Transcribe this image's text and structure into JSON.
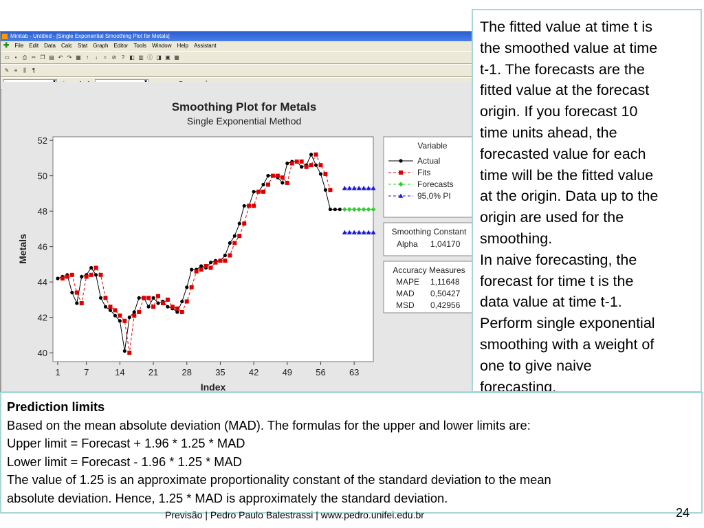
{
  "window": {
    "title": "Minitab - Untitled - [Single Exponential Smoothing Plot for Metals]",
    "menus": [
      "File",
      "Edit",
      "Data",
      "Calc",
      "Stat",
      "Graph",
      "Editor",
      "Tools",
      "Window",
      "Help",
      "Assistant"
    ]
  },
  "chart_data": {
    "type": "line",
    "title": "Smoothing Plot for Metals",
    "subtitle": "Single Exponential Method",
    "xlabel": "Index",
    "ylabel": "Metals",
    "xticks": [
      1,
      7,
      14,
      21,
      28,
      35,
      42,
      49,
      56,
      63
    ],
    "yticks": [
      40,
      42,
      44,
      46,
      48,
      50,
      52
    ],
    "xlim": [
      0,
      67
    ],
    "ylim": [
      39.5,
      52.2
    ],
    "series": [
      {
        "name": "Actual",
        "color": "#000000",
        "marker": "circle",
        "line": "solid",
        "x": [
          1,
          2,
          3,
          4,
          5,
          6,
          7,
          8,
          9,
          10,
          11,
          12,
          13,
          14,
          15,
          16,
          17,
          18,
          19,
          20,
          21,
          22,
          23,
          24,
          25,
          26,
          27,
          28,
          29,
          30,
          31,
          32,
          33,
          34,
          35,
          36,
          37,
          38,
          39,
          40,
          41,
          42,
          43,
          44,
          45,
          46,
          47,
          48,
          49,
          50,
          51,
          52,
          53,
          54,
          55,
          56,
          57,
          58,
          59,
          60
        ],
        "y": [
          44.2,
          44.3,
          44.4,
          43.4,
          42.8,
          44.3,
          44.4,
          44.8,
          44.4,
          43.1,
          42.6,
          42.4,
          42.1,
          41.8,
          40.1,
          42.0,
          42.3,
          43.1,
          43.1,
          42.6,
          43.1,
          42.8,
          42.9,
          42.6,
          42.5,
          42.3,
          42.9,
          43.7,
          44.7,
          44.7,
          44.9,
          44.8,
          45.1,
          45.2,
          45.2,
          45.5,
          46.2,
          46.6,
          47.3,
          48.3,
          48.3,
          49.1,
          49.1,
          49.5,
          50.0,
          50.0,
          49.9,
          49.6,
          50.7,
          50.8,
          50.8,
          50.5,
          50.6,
          51.2,
          50.6,
          50.1,
          49.2,
          48.1,
          48.1,
          48.1
        ]
      },
      {
        "name": "Fits",
        "color": "#dd0000",
        "marker": "square",
        "line": "dashed",
        "x": [
          2,
          3,
          4,
          5,
          6,
          7,
          8,
          9,
          10,
          11,
          12,
          13,
          14,
          15,
          16,
          17,
          18,
          19,
          20,
          21,
          22,
          23,
          24,
          25,
          26,
          27,
          28,
          29,
          30,
          31,
          32,
          33,
          34,
          35,
          36,
          37,
          38,
          39,
          40,
          41,
          42,
          43,
          44,
          45,
          46,
          47,
          48,
          49,
          50,
          51,
          52,
          53,
          54,
          55,
          56,
          57,
          58
        ],
        "y": [
          44.2,
          44.3,
          44.4,
          43.4,
          42.8,
          44.3,
          44.4,
          44.8,
          44.4,
          43.1,
          42.6,
          42.4,
          42.1,
          41.8,
          40.0,
          42.1,
          42.3,
          43.1,
          43.1,
          42.6,
          43.2,
          42.8,
          43.0,
          42.6,
          42.5,
          42.3,
          42.9,
          43.7,
          44.6,
          44.7,
          44.9,
          44.8,
          45.1,
          45.2,
          45.2,
          45.5,
          46.2,
          46.6,
          47.3,
          48.3,
          48.3,
          49.1,
          49.1,
          49.5,
          50.0,
          50.0,
          49.9,
          49.6,
          50.7,
          50.8,
          50.8,
          50.5,
          50.6,
          51.2,
          50.6,
          50.1,
          49.2
        ]
      },
      {
        "name": "Forecasts",
        "color": "#33cc33",
        "marker": "diamond",
        "line": "dashed",
        "x": [
          61,
          62,
          63,
          64,
          65,
          66,
          67
        ],
        "y": [
          48.1,
          48.1,
          48.1,
          48.1,
          48.1,
          48.1,
          48.1
        ]
      },
      {
        "name": "95,0% PI",
        "color": "#1a1acc",
        "marker": "triangle",
        "line": "dashed",
        "x": [
          61,
          62,
          63,
          64,
          65,
          66,
          67
        ],
        "upper": [
          49.3,
          49.3,
          49.3,
          49.3,
          49.3,
          49.3,
          49.3
        ],
        "lower": [
          46.8,
          46.8,
          46.8,
          46.8,
          46.8,
          46.8,
          46.8
        ]
      }
    ],
    "legend_title": "Variable",
    "smoothing": {
      "title": "Smoothing Constant",
      "rows": [
        [
          "Alpha",
          "1,04170"
        ]
      ]
    },
    "accuracy": {
      "title": "Accuracy Measures",
      "rows": [
        [
          "MAPE",
          "1,11648"
        ],
        [
          "MAD",
          "0,50427"
        ],
        [
          "MSD",
          "0,42956"
        ]
      ]
    }
  },
  "side_text": [
    "The fitted value at time t is",
    "the smoothed value at time",
    "t-1. The forecasts are the",
    "fitted value at the forecast",
    "origin. If you forecast 10",
    "time units ahead, the",
    "forecasted value for each",
    "time will be the fitted value",
    "at the origin. Data up to the",
    "origin are used for the",
    "smoothing.",
    "In naive forecasting, the",
    "forecast for time t is the",
    "data value at time t-1.",
    "Perform single exponential",
    "smoothing with a weight of",
    "one to give naive",
    "forecasting."
  ],
  "bottom": {
    "heading": "Prediction limits",
    "lines": [
      "Based on the mean absolute deviation (MAD). The formulas for the upper and lower limits are:",
      "Upper limit = Forecast + 1.96 * 1.25 * MAD",
      "Lower limit = Forecast - 1.96 * 1.25 * MAD",
      "The value of 1.25 is an approximate proportionality constant of the standard deviation to the mean",
      "absolute deviation. Hence, 1.25 * MAD is approximately the standard deviation."
    ]
  },
  "footer": "Previsão | Pedro Paulo Balestrassi | www.pedro.unifei.edu.br",
  "page_number": "24"
}
